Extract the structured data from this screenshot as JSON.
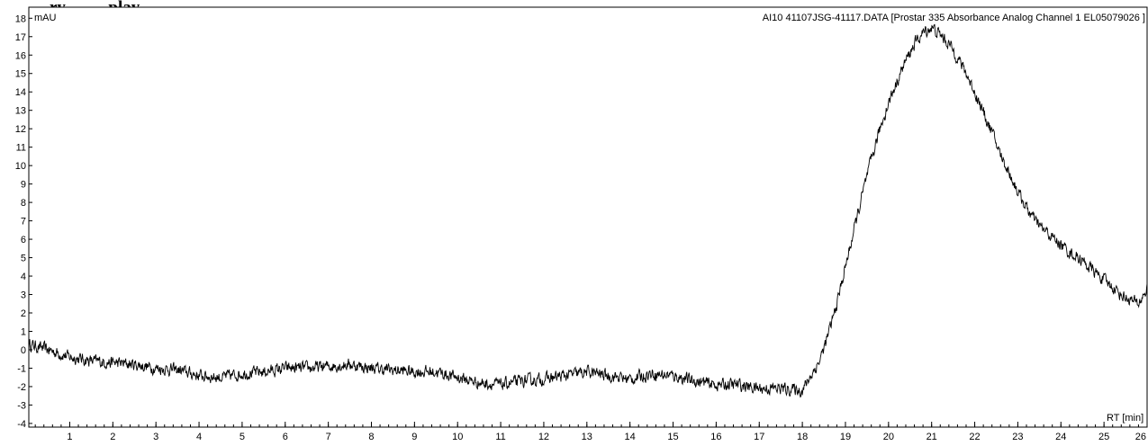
{
  "page_title": "…ry … …play…",
  "chart_data": {
    "type": "line",
    "title": "AI10 41107JSG-41117.DATA [Prostar 335 Absorbance Analog Channel 1 EL05079026 ]",
    "ylabel": "mAU",
    "xlabel": "RT [min]",
    "xlim": [
      0.05,
      26
    ],
    "ylim": [
      -4.2,
      18.6
    ],
    "y_ticks": [
      -4,
      -3,
      -2,
      -1,
      0,
      1,
      2,
      3,
      4,
      5,
      6,
      7,
      8,
      9,
      10,
      11,
      12,
      13,
      14,
      15,
      16,
      17,
      18
    ],
    "x_ticks": [
      1,
      2,
      3,
      4,
      5,
      6,
      7,
      8,
      9,
      10,
      11,
      12,
      13,
      14,
      15,
      16,
      17,
      18,
      19,
      20,
      21,
      22,
      23,
      24,
      25,
      26
    ],
    "grid": false,
    "series": [
      {
        "color": "#000000",
        "noise": 0.35,
        "x": [
          0.05,
          0.5,
          1,
          1.5,
          2,
          2.5,
          3,
          3.5,
          4,
          4.5,
          5,
          5.5,
          6,
          6.5,
          7,
          7.5,
          8,
          8.5,
          9,
          9.5,
          10,
          10.5,
          11,
          11.5,
          12,
          12.5,
          13,
          13.5,
          14,
          14.5,
          15,
          15.5,
          16,
          16.5,
          17,
          17.5,
          18,
          18.2,
          18.4,
          18.6,
          18.8,
          19,
          19.2,
          19.4,
          19.6,
          19.8,
          20,
          20.2,
          20.4,
          20.6,
          20.8,
          21,
          21.2,
          21.4,
          21.6,
          21.8,
          22,
          22.2,
          22.4,
          22.6,
          22.8,
          23,
          23.2,
          23.4,
          23.6,
          23.8,
          24,
          24.2,
          24.4,
          24.6,
          24.8,
          25,
          25.2,
          25.4,
          25.6,
          25.8,
          26
        ],
        "y": [
          0.3,
          0.0,
          -0.4,
          -0.6,
          -0.7,
          -0.8,
          -1.0,
          -1.1,
          -1.4,
          -1.5,
          -1.3,
          -1.2,
          -1.0,
          -1.0,
          -0.9,
          -0.8,
          -1.0,
          -1.1,
          -1.2,
          -1.2,
          -1.5,
          -1.8,
          -1.9,
          -1.7,
          -1.6,
          -1.4,
          -1.2,
          -1.4,
          -1.6,
          -1.3,
          -1.4,
          -1.7,
          -1.9,
          -1.9,
          -2.1,
          -2.1,
          -2.2,
          -1.4,
          -0.6,
          0.8,
          2.5,
          4.5,
          6.5,
          8.5,
          10.3,
          12.0,
          13.4,
          14.6,
          15.7,
          16.6,
          17.2,
          17.5,
          17.1,
          16.6,
          15.9,
          15.0,
          14.0,
          12.9,
          11.8,
          10.6,
          9.6,
          8.6,
          7.7,
          7.0,
          6.5,
          6.1,
          5.7,
          5.3,
          5.0,
          4.6,
          4.2,
          3.8,
          3.4,
          3.0,
          2.7,
          2.5,
          3.3
        ]
      }
    ]
  }
}
